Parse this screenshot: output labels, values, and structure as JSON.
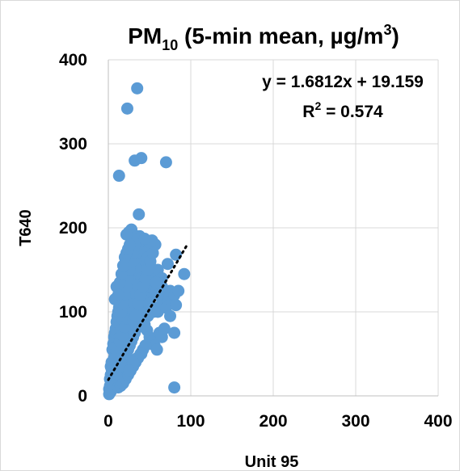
{
  "chart_data": {
    "type": "scatter",
    "title_main": "PM",
    "title_sub": "10",
    "title_rest": " (5-min mean, µg/m",
    "title_sup": "3",
    "title_end": ")",
    "xlabel": "Unit 95",
    "ylabel": "T640",
    "xlim": [
      0,
      400
    ],
    "ylim": [
      0,
      400
    ],
    "xticks": [
      0,
      100,
      200,
      300,
      400
    ],
    "yticks": [
      0,
      100,
      200,
      300,
      400
    ],
    "grid": true,
    "marker_color": "#5b9bd5",
    "trendline": {
      "slope": 1.6812,
      "intercept": 19.159,
      "x_range": [
        0,
        95
      ],
      "style": "dotted",
      "color": "#000000"
    },
    "equation": "y = 1.6812x + 19.159",
    "r2_label": "R",
    "r2_sup": "2",
    "r2_value": " = 0.574",
    "series": [
      {
        "points": [
          [
            1,
            2
          ],
          [
            2,
            4
          ],
          [
            3,
            6
          ],
          [
            1,
            8
          ],
          [
            4,
            10
          ],
          [
            2,
            12
          ],
          [
            5,
            14
          ],
          [
            3,
            5
          ],
          [
            6,
            18
          ],
          [
            4,
            20
          ],
          [
            7,
            22
          ],
          [
            5,
            15
          ],
          [
            8,
            25
          ],
          [
            6,
            28
          ],
          [
            9,
            30
          ],
          [
            2,
            20
          ],
          [
            3,
            25
          ],
          [
            4,
            32
          ],
          [
            5,
            38
          ],
          [
            6,
            42
          ],
          [
            7,
            45
          ],
          [
            8,
            50
          ],
          [
            9,
            55
          ],
          [
            10,
            60
          ],
          [
            3,
            35
          ],
          [
            4,
            40
          ],
          [
            5,
            55
          ],
          [
            6,
            62
          ],
          [
            7,
            70
          ],
          [
            8,
            75
          ],
          [
            9,
            80
          ],
          [
            10,
            88
          ],
          [
            11,
            95
          ],
          [
            12,
            100
          ],
          [
            13,
            105
          ],
          [
            14,
            110
          ],
          [
            15,
            118
          ],
          [
            16,
            125
          ],
          [
            17,
            130
          ],
          [
            18,
            135
          ],
          [
            19,
            140
          ],
          [
            20,
            145
          ],
          [
            21,
            150
          ],
          [
            22,
            155
          ],
          [
            23,
            160
          ],
          [
            24,
            165
          ],
          [
            25,
            170
          ],
          [
            26,
            175
          ],
          [
            27,
            180
          ],
          [
            28,
            185
          ],
          [
            29,
            190
          ],
          [
            10,
            20
          ],
          [
            12,
            25
          ],
          [
            14,
            30
          ],
          [
            16,
            35
          ],
          [
            18,
            40
          ],
          [
            20,
            45
          ],
          [
            22,
            50
          ],
          [
            24,
            55
          ],
          [
            26,
            60
          ],
          [
            28,
            65
          ],
          [
            30,
            70
          ],
          [
            32,
            75
          ],
          [
            34,
            80
          ],
          [
            36,
            85
          ],
          [
            38,
            90
          ],
          [
            40,
            95
          ],
          [
            42,
            100
          ],
          [
            44,
            105
          ],
          [
            46,
            110
          ],
          [
            48,
            115
          ],
          [
            50,
            120
          ],
          [
            52,
            125
          ],
          [
            54,
            130
          ],
          [
            15,
            40
          ],
          [
            18,
            55
          ],
          [
            20,
            65
          ],
          [
            22,
            75
          ],
          [
            24,
            85
          ],
          [
            26,
            95
          ],
          [
            28,
            105
          ],
          [
            30,
            115
          ],
          [
            32,
            125
          ],
          [
            34,
            135
          ],
          [
            36,
            145
          ],
          [
            38,
            155
          ],
          [
            40,
            165
          ],
          [
            42,
            175
          ],
          [
            44,
            185
          ],
          [
            46,
            175
          ],
          [
            48,
            165
          ],
          [
            50,
            155
          ],
          [
            52,
            145
          ],
          [
            54,
            135
          ],
          [
            56,
            125
          ],
          [
            10,
            50
          ],
          [
            12,
            60
          ],
          [
            14,
            70
          ],
          [
            16,
            80
          ],
          [
            18,
            90
          ],
          [
            20,
            100
          ],
          [
            22,
            110
          ],
          [
            24,
            120
          ],
          [
            26,
            130
          ],
          [
            28,
            140
          ],
          [
            30,
            150
          ],
          [
            32,
            160
          ],
          [
            34,
            170
          ],
          [
            36,
            180
          ],
          [
            38,
            190
          ],
          [
            25,
            195
          ],
          [
            30,
            160
          ],
          [
            35,
            150
          ],
          [
            40,
            140
          ],
          [
            45,
            130
          ],
          [
            50,
            110
          ],
          [
            55,
            105
          ],
          [
            60,
            100
          ],
          [
            65,
            110
          ],
          [
            70,
            105
          ],
          [
            75,
            115
          ],
          [
            60,
            150
          ],
          [
            65,
            130
          ],
          [
            70,
            120
          ],
          [
            75,
            125
          ],
          [
            80,
            120
          ],
          [
            5,
            30
          ],
          [
            8,
            45
          ],
          [
            11,
            58
          ],
          [
            14,
            65
          ],
          [
            17,
            72
          ],
          [
            20,
            82
          ],
          [
            23,
            92
          ],
          [
            26,
            102
          ],
          [
            29,
            112
          ],
          [
            32,
            122
          ],
          [
            35,
            132
          ],
          [
            38,
            100
          ],
          [
            41,
            92
          ],
          [
            44,
            85
          ],
          [
            47,
            78
          ],
          [
            50,
            70
          ],
          [
            53,
            65
          ],
          [
            56,
            60
          ],
          [
            59,
            55
          ],
          [
            62,
            75
          ],
          [
            65,
            70
          ],
          [
            68,
            80
          ],
          [
            30,
            90
          ],
          [
            33,
            95
          ],
          [
            36,
            110
          ],
          [
            39,
            120
          ],
          [
            42,
            130
          ],
          [
            45,
            140
          ],
          [
            48,
            150
          ],
          [
            51,
            160
          ],
          [
            54,
            170
          ],
          [
            57,
            180
          ],
          [
            12,
            10
          ],
          [
            15,
            12
          ],
          [
            18,
            15
          ],
          [
            21,
            20
          ],
          [
            24,
            25
          ],
          [
            27,
            30
          ],
          [
            30,
            35
          ],
          [
            33,
            40
          ],
          [
            36,
            45
          ],
          [
            39,
            50
          ],
          [
            42,
            55
          ],
          [
            16,
            100
          ],
          [
            18,
            110
          ],
          [
            20,
            120
          ],
          [
            22,
            130
          ],
          [
            24,
            140
          ],
          [
            26,
            150
          ],
          [
            28,
            160
          ],
          [
            30,
            170
          ],
          [
            32,
            180
          ],
          [
            34,
            190
          ],
          [
            85,
            125
          ],
          [
            92,
            145
          ],
          [
            82,
            108
          ],
          [
            75,
            95
          ],
          [
            80,
            75
          ],
          [
            82,
            168
          ],
          [
            72,
            157
          ],
          [
            65,
            140
          ],
          [
            60,
            120
          ],
          [
            58,
            135
          ],
          [
            13,
            262
          ],
          [
            23,
            342
          ],
          [
            35,
            366
          ],
          [
            32,
            280
          ],
          [
            40,
            283
          ],
          [
            70,
            278
          ],
          [
            37,
            216
          ],
          [
            28,
            198
          ],
          [
            22,
            192
          ],
          [
            50,
            183
          ],
          [
            53,
            185
          ],
          [
            44,
            187
          ],
          [
            80,
            10
          ],
          [
            55,
            100
          ],
          [
            48,
            95
          ],
          [
            45,
            60
          ],
          [
            40,
            50
          ],
          [
            35,
            45
          ],
          [
            30,
            40
          ],
          [
            25,
            30
          ],
          [
            8,
            115
          ],
          [
            10,
            130
          ],
          [
            12,
            120
          ],
          [
            14,
            135
          ],
          [
            16,
            145
          ],
          [
            18,
            155
          ],
          [
            20,
            165
          ],
          [
            22,
            170
          ],
          [
            24,
            175
          ],
          [
            26,
            180
          ]
        ]
      }
    ]
  }
}
